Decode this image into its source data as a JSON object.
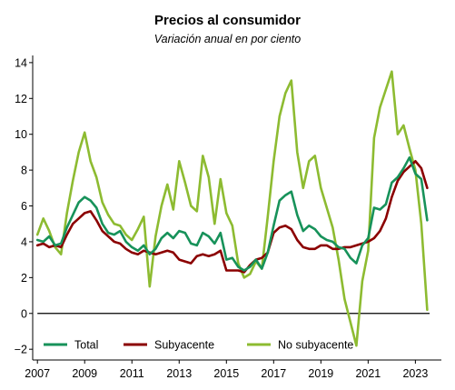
{
  "chart_data": {
    "type": "line",
    "title": "Precios al consumidor",
    "subtitle": "Variación anual en por ciento",
    "xlabel": "",
    "ylabel": "",
    "xlim": [
      2006.8,
      2024.1
    ],
    "ylim": [
      -2.6,
      14.4
    ],
    "x_ticks": [
      2007,
      2009,
      2011,
      2013,
      2015,
      2017,
      2019,
      2021,
      2023
    ],
    "y_ticks": [
      -2,
      0,
      2,
      4,
      6,
      8,
      10,
      12,
      14
    ],
    "x_tick_labels": [
      "2007",
      "2009",
      "2011",
      "2013",
      "2015",
      "2017",
      "2019",
      "2021",
      "2023"
    ],
    "y_tick_labels": [
      "−2",
      "0",
      "2",
      "4",
      "6",
      "8",
      "10",
      "12",
      "14"
    ],
    "reference_line": {
      "y": 0,
      "from": 2007,
      "to": 2023.6,
      "color": "#000000"
    },
    "grid": false,
    "legend_position": "bottom-left",
    "series": [
      {
        "name": "Total",
        "color": "#17925a",
        "x": [
          2007.0,
          2007.25,
          2007.5,
          2007.75,
          2008.0,
          2008.25,
          2008.5,
          2008.75,
          2009.0,
          2009.25,
          2009.5,
          2009.75,
          2010.0,
          2010.25,
          2010.5,
          2010.75,
          2011.0,
          2011.25,
          2011.5,
          2011.75,
          2012.0,
          2012.25,
          2012.5,
          2012.75,
          2013.0,
          2013.25,
          2013.5,
          2013.75,
          2014.0,
          2014.25,
          2014.5,
          2014.75,
          2015.0,
          2015.25,
          2015.5,
          2015.75,
          2016.0,
          2016.25,
          2016.5,
          2016.75,
          2017.0,
          2017.25,
          2017.5,
          2017.75,
          2018.0,
          2018.25,
          2018.5,
          2018.75,
          2019.0,
          2019.25,
          2019.5,
          2019.75,
          2020.0,
          2020.25,
          2020.5,
          2020.75,
          2021.0,
          2021.25,
          2021.5,
          2021.75,
          2022.0,
          2022.25,
          2022.5,
          2022.75,
          2023.0,
          2023.25,
          2023.5
        ],
        "y": [
          4.1,
          4.0,
          4.3,
          3.8,
          3.9,
          4.8,
          5.5,
          6.2,
          6.5,
          6.3,
          5.9,
          5.0,
          4.5,
          4.4,
          4.6,
          4.0,
          3.7,
          3.5,
          3.8,
          3.3,
          3.6,
          4.2,
          4.5,
          4.2,
          4.6,
          4.5,
          3.9,
          3.8,
          4.5,
          4.3,
          3.9,
          4.5,
          3.0,
          3.1,
          2.6,
          2.4,
          2.6,
          3.0,
          2.5,
          3.4,
          4.9,
          6.3,
          6.6,
          6.8,
          5.5,
          4.6,
          4.9,
          4.7,
          4.3,
          4.1,
          4.0,
          3.7,
          3.6,
          3.1,
          2.8,
          3.8,
          4.2,
          5.9,
          5.8,
          6.1,
          7.3,
          7.6,
          8.1,
          8.7,
          7.8,
          7.5,
          5.2
        ]
      },
      {
        "name": "Subyacente",
        "color": "#8b0000",
        "x": [
          2007.0,
          2007.25,
          2007.5,
          2007.75,
          2008.0,
          2008.25,
          2008.5,
          2008.75,
          2009.0,
          2009.25,
          2009.5,
          2009.75,
          2010.0,
          2010.25,
          2010.5,
          2010.75,
          2011.0,
          2011.25,
          2011.5,
          2011.75,
          2012.0,
          2012.25,
          2012.5,
          2012.75,
          2013.0,
          2013.25,
          2013.5,
          2013.75,
          2014.0,
          2014.25,
          2014.5,
          2014.75,
          2015.0,
          2015.25,
          2015.5,
          2015.75,
          2016.0,
          2016.25,
          2016.5,
          2016.75,
          2017.0,
          2017.25,
          2017.5,
          2017.75,
          2018.0,
          2018.25,
          2018.5,
          2018.75,
          2019.0,
          2019.25,
          2019.5,
          2019.75,
          2020.0,
          2020.25,
          2020.5,
          2020.75,
          2021.0,
          2021.25,
          2021.5,
          2021.75,
          2022.0,
          2022.25,
          2022.5,
          2022.75,
          2023.0,
          2023.25,
          2023.5
        ],
        "y": [
          3.8,
          3.9,
          3.7,
          3.8,
          3.7,
          4.4,
          5.0,
          5.3,
          5.6,
          5.7,
          5.2,
          4.6,
          4.3,
          4.0,
          3.9,
          3.6,
          3.4,
          3.3,
          3.5,
          3.4,
          3.3,
          3.4,
          3.5,
          3.4,
          3.0,
          2.9,
          2.8,
          3.2,
          3.3,
          3.2,
          3.3,
          3.5,
          2.4,
          2.4,
          2.4,
          2.3,
          2.7,
          3.0,
          3.1,
          3.4,
          4.5,
          4.8,
          4.9,
          4.7,
          4.1,
          3.7,
          3.6,
          3.6,
          3.8,
          3.8,
          3.6,
          3.6,
          3.7,
          3.7,
          3.8,
          3.9,
          4.0,
          4.2,
          4.6,
          5.3,
          6.5,
          7.4,
          7.9,
          8.2,
          8.5,
          8.1,
          7.0
        ]
      },
      {
        "name": "No subyacente",
        "color": "#8dbb31",
        "x": [
          2007.0,
          2007.25,
          2007.5,
          2007.75,
          2008.0,
          2008.25,
          2008.5,
          2008.75,
          2009.0,
          2009.25,
          2009.5,
          2009.75,
          2010.0,
          2010.25,
          2010.5,
          2010.75,
          2011.0,
          2011.25,
          2011.5,
          2011.75,
          2012.0,
          2012.25,
          2012.5,
          2012.75,
          2013.0,
          2013.25,
          2013.5,
          2013.75,
          2014.0,
          2014.25,
          2014.5,
          2014.75,
          2015.0,
          2015.25,
          2015.5,
          2015.75,
          2016.0,
          2016.25,
          2016.5,
          2016.75,
          2017.0,
          2017.25,
          2017.5,
          2017.75,
          2018.0,
          2018.25,
          2018.5,
          2018.75,
          2019.0,
          2019.25,
          2019.5,
          2019.75,
          2020.0,
          2020.25,
          2020.5,
          2020.75,
          2021.0,
          2021.25,
          2021.5,
          2021.75,
          2022.0,
          2022.25,
          2022.5,
          2022.75,
          2023.0,
          2023.25,
          2023.5
        ],
        "y": [
          4.4,
          5.3,
          4.6,
          3.7,
          3.3,
          5.6,
          7.4,
          9.0,
          10.1,
          8.5,
          7.6,
          6.2,
          5.5,
          5.0,
          4.9,
          4.4,
          4.1,
          4.7,
          5.4,
          1.5,
          4.3,
          6.0,
          7.2,
          5.8,
          8.5,
          7.3,
          6.0,
          5.7,
          8.8,
          7.6,
          5.0,
          7.5,
          5.6,
          4.9,
          2.8,
          2.0,
          2.2,
          2.9,
          2.5,
          5.4,
          8.5,
          11.0,
          12.3,
          13.0,
          9.0,
          7.0,
          8.5,
          8.8,
          7.0,
          5.9,
          4.8,
          3.0,
          0.8,
          -0.5,
          -1.8,
          1.8,
          3.5,
          9.8,
          11.5,
          12.5,
          13.5,
          10.0,
          10.5,
          9.2,
          8.0,
          5.0,
          0.2
        ]
      }
    ]
  }
}
